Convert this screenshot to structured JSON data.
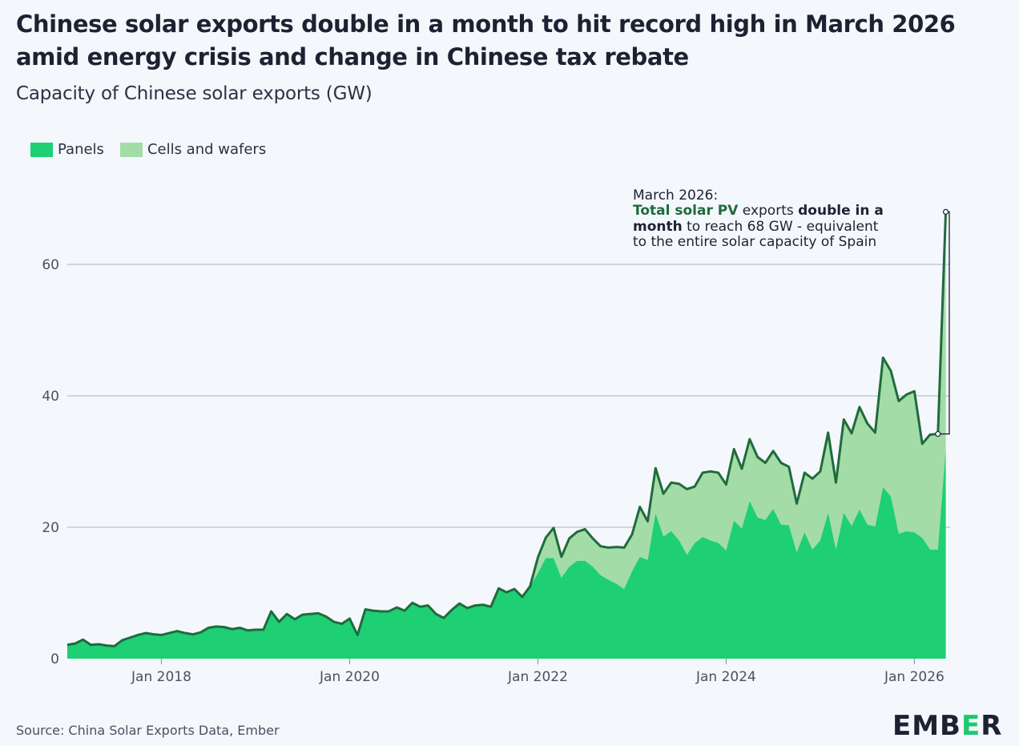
{
  "title": "Chinese solar exports double in a month to hit record high in March 2026 amid energy crisis and change in Chinese tax rebate",
  "subtitle": "Capacity of Chinese solar exports (GW)",
  "source": "Source: China Solar Exports Data, Ember",
  "logo": {
    "before": "EMB",
    "accent": "E",
    "after": "R"
  },
  "colors": {
    "panels": "#1ecf74",
    "cells": "#a3dca7",
    "line": "#1f6b3c",
    "grid": "#b9bfcb",
    "background": "#f4f7fb"
  },
  "annotation": {
    "line1": "March 2026:",
    "line2a": "Total solar PV",
    "line2b": " exports ",
    "line2c": "double in a",
    "line3a": "month",
    "line3b": " to reach 68 GW - equivalent",
    "line4": "to the entire solar capacity of Spain"
  },
  "chart_data": {
    "type": "area",
    "title": "Chinese solar exports double in a month to hit record high in March 2026 amid energy crisis and change in Chinese tax rebate",
    "subtitle": "Capacity of Chinese solar exports (GW)",
    "ylabel": "",
    "xlabel": "",
    "ylim": [
      0,
      70
    ],
    "yticks": [
      0,
      20,
      40,
      60
    ],
    "xticks": [
      {
        "label": "Jan 2018",
        "date": "2018-01"
      },
      {
        "label": "Jan 2020",
        "date": "2020-01"
      },
      {
        "label": "Jan 2022",
        "date": "2022-01"
      },
      {
        "label": "Jan 2024",
        "date": "2024-01"
      },
      {
        "label": "Jan 2026",
        "date": "2026-01"
      }
    ],
    "x_start": "2017-01",
    "x_end": "2026-03",
    "grid": "horizontal",
    "legend_position": "top-left",
    "stacked": true,
    "series": [
      {
        "name": "Panels",
        "values": [
          2.1,
          2.3,
          2.9,
          2.1,
          2.2,
          2.0,
          1.9,
          2.8,
          3.2,
          3.6,
          3.9,
          3.7,
          3.6,
          3.9,
          4.2,
          3.9,
          3.7,
          4.0,
          4.7,
          4.9,
          4.8,
          4.5,
          4.7,
          4.3,
          4.4,
          4.4,
          7.2,
          5.6,
          6.8,
          6.0,
          6.7,
          6.8,
          6.9,
          6.4,
          5.6,
          5.3,
          6.1,
          3.6,
          7.5,
          7.3,
          7.2,
          7.2,
          7.8,
          7.3,
          8.5,
          7.9,
          8.1,
          6.8,
          6.2,
          7.4,
          8.4,
          7.7,
          8.1,
          8.2,
          7.9,
          10.7,
          10.1,
          10.6,
          9.4,
          11.0,
          13.0,
          15.3,
          15.3,
          12.3,
          14.0,
          14.9,
          14.9,
          14.0,
          12.7,
          12.0,
          11.4,
          10.6,
          13.3,
          15.5,
          15.0,
          22.1,
          18.6,
          19.4,
          18.0,
          15.8,
          17.6,
          18.5,
          18.0,
          17.6,
          16.5,
          21.0,
          19.8,
          24.0,
          21.5,
          21.1,
          22.8,
          20.4,
          20.3,
          16.2,
          19.2,
          16.6,
          18.0,
          22.2,
          16.6,
          22.2,
          20.2,
          22.7,
          20.4,
          20.1,
          26.1,
          24.7,
          19.0,
          19.4,
          19.2,
          18.4,
          16.6,
          16.6,
          31.9
        ]
      },
      {
        "name": "Cells and wafers",
        "values": [
          0.0,
          0.0,
          0.0,
          0.0,
          0.0,
          0.0,
          0.0,
          0.0,
          0.0,
          0.0,
          0.0,
          0.0,
          0.0,
          0.0,
          0.0,
          0.0,
          0.0,
          0.0,
          0.0,
          0.0,
          0.0,
          0.0,
          0.0,
          0.0,
          0.0,
          0.0,
          0.0,
          0.0,
          0.0,
          0.0,
          0.0,
          0.0,
          0.0,
          0.0,
          0.0,
          0.0,
          0.0,
          0.0,
          0.0,
          0.0,
          0.0,
          0.0,
          0.0,
          0.0,
          0.0,
          0.0,
          0.0,
          0.0,
          0.0,
          0.0,
          0.0,
          0.0,
          0.0,
          0.0,
          0.0,
          0.0,
          0.0,
          0.0,
          0.0,
          0.0,
          2.4,
          3.1,
          4.6,
          3.2,
          4.3,
          4.4,
          4.8,
          4.3,
          4.4,
          4.9,
          5.6,
          6.3,
          5.6,
          7.6,
          5.9,
          6.9,
          6.5,
          7.4,
          8.6,
          10.0,
          8.6,
          9.8,
          10.5,
          10.7,
          10.0,
          10.9,
          9.1,
          9.4,
          9.2,
          8.7,
          8.8,
          9.4,
          8.9,
          7.4,
          9.1,
          10.8,
          10.5,
          12.2,
          10.2,
          14.2,
          14.1,
          15.6,
          15.4,
          14.3,
          19.7,
          19.1,
          20.2,
          20.8,
          21.5,
          14.3,
          17.5,
          17.6,
          36.1
        ]
      }
    ],
    "annotation": "March 2026: Total solar PV exports double in a month to reach 68 GW - equivalent to the entire solar capacity of Spain"
  }
}
